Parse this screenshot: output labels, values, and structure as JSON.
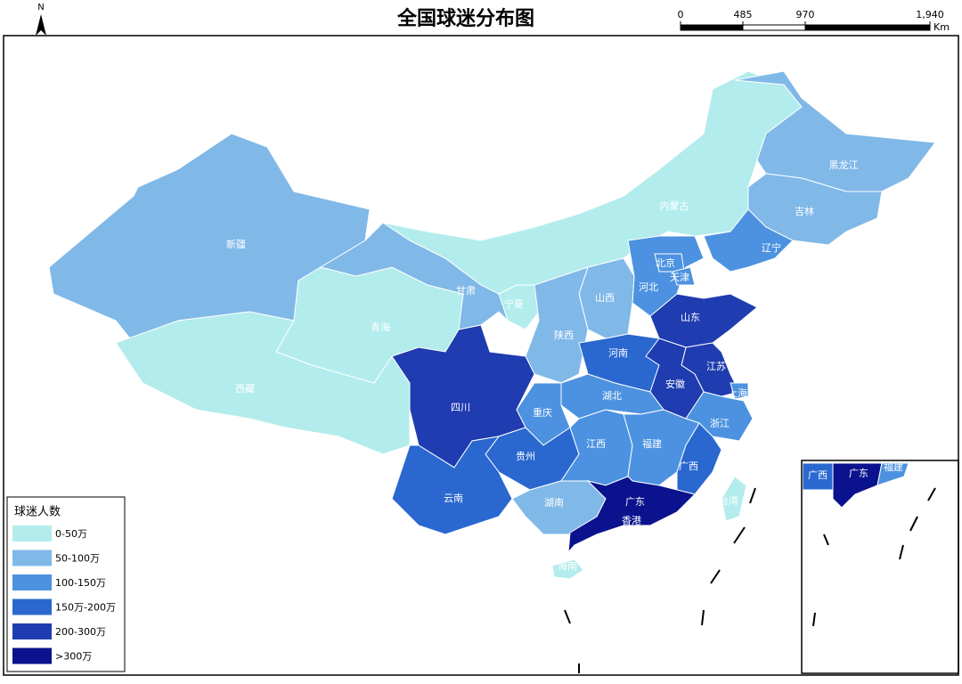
{
  "title": "全国球迷分布图",
  "north": "N",
  "scale_bar": {
    "ticks": [
      0,
      485,
      970,
      {
        "value": 1940,
        "label": "1,940"
      }
    ],
    "unit": "Km"
  },
  "legend": {
    "title": "球迷人数",
    "classes": [
      {
        "label": "0-50万",
        "color": "#b3ecec"
      },
      {
        "label": "50-100万",
        "color": "#80b8e8"
      },
      {
        "label": "100-150万",
        "color": "#4c92e0"
      },
      {
        "label": "150万-200万",
        "color": "#2a68d0"
      },
      {
        "label": "200-300万",
        "color": "#1f3cb0"
      },
      {
        "label": ">300万",
        "color": "#0b128d"
      }
    ]
  },
  "provinces": [
    {
      "name": "新疆",
      "class": 1
    },
    {
      "name": "西藏",
      "class": 0
    },
    {
      "name": "青海",
      "class": 0
    },
    {
      "name": "甘肃",
      "class": 1
    },
    {
      "name": "内蒙古",
      "class": 0
    },
    {
      "name": "宁夏",
      "class": 0
    },
    {
      "name": "黑龙江",
      "class": 1
    },
    {
      "name": "吉林",
      "class": 1
    },
    {
      "name": "辽宁",
      "class": 2
    },
    {
      "name": "河北",
      "class": 2
    },
    {
      "name": "北京",
      "class": 2
    },
    {
      "name": "天津",
      "class": 2
    },
    {
      "name": "山西",
      "class": 1
    },
    {
      "name": "陕西",
      "class": 1
    },
    {
      "name": "山东",
      "class": 4
    },
    {
      "name": "河南",
      "class": 3
    },
    {
      "name": "江苏",
      "class": 4
    },
    {
      "name": "安徽",
      "class": 4
    },
    {
      "name": "上海",
      "class": 2
    },
    {
      "name": "浙江",
      "class": 2
    },
    {
      "name": "湖北",
      "class": 2
    },
    {
      "name": "重庆",
      "class": 2
    },
    {
      "name": "四川",
      "class": 4
    },
    {
      "name": "贵州",
      "class": 3
    },
    {
      "name": "云南",
      "class": 3
    },
    {
      "name": "湖南",
      "class": 1
    },
    {
      "name": "江西",
      "class": 2
    },
    {
      "name": "福建",
      "class": 2
    },
    {
      "name": "广西",
      "class": 3
    },
    {
      "name": "广东",
      "class": 5
    },
    {
      "name": "香港",
      "class": 5
    },
    {
      "name": "海南",
      "class": 0
    },
    {
      "name": "台湾",
      "class": 0
    }
  ],
  "inset": [
    {
      "name": "广西",
      "class": 3
    },
    {
      "name": "广东",
      "class": 5
    },
    {
      "name": "福建",
      "class": 2
    }
  ]
}
